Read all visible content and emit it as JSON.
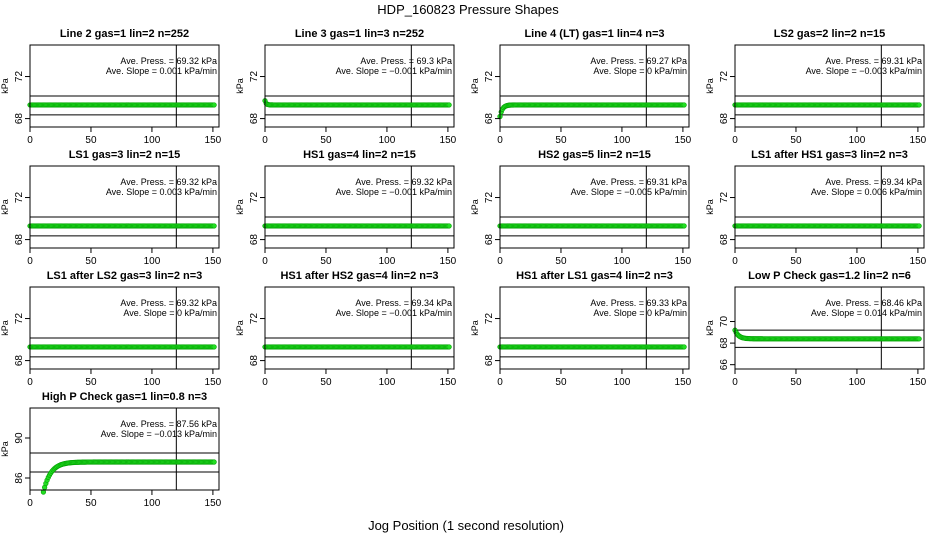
{
  "figure": {
    "title": "HDP_160823  Pressure Shapes",
    "xlabel": "Jog Position (1 second resolution)"
  },
  "colors": {
    "points": "#22dd22",
    "point_edge": "#00a000",
    "lines": "#000000"
  },
  "chart_data": [
    {
      "type": "scatter",
      "title": "Line 2 gas=1 lin=2 n=252",
      "ylabel": "kPa",
      "xlim": [
        0,
        155
      ],
      "ylim": [
        67.2,
        75.0
      ],
      "yticks": [
        68,
        72
      ],
      "xticks": [
        0,
        50,
        100,
        150
      ],
      "hlines": [
        70.15,
        68.35
      ],
      "vline": 120,
      "annotation": {
        "press": "Ave. Press. = 69.32  kPa",
        "slope": "Ave. Slope = 0.001  kPa/min"
      },
      "shape": {
        "type": "flat",
        "level": 69.3
      }
    },
    {
      "type": "scatter",
      "title": "Line 3 gas=1 lin=3 n=252",
      "ylabel": "kPa",
      "xlim": [
        0,
        155
      ],
      "ylim": [
        67.2,
        75.0
      ],
      "yticks": [
        68,
        72
      ],
      "xticks": [
        0,
        50,
        100,
        150
      ],
      "hlines": [
        70.15,
        68.35
      ],
      "vline": 120,
      "annotation": {
        "press": "Ave. Press. = 69.3  kPa",
        "slope": "Ave. Slope = −0.001  kPa/min"
      },
      "shape": {
        "type": "drop",
        "level": 69.3,
        "start": 69.7,
        "tau": 1
      }
    },
    {
      "type": "scatter",
      "title": "Line 4 (LT) gas=1 lin=4 n=3",
      "ylabel": "kPa",
      "xlim": [
        0,
        155
      ],
      "ylim": [
        67.2,
        75.0
      ],
      "yticks": [
        68,
        72
      ],
      "xticks": [
        0,
        50,
        100,
        150
      ],
      "hlines": [
        70.15,
        68.35
      ],
      "vline": 120,
      "annotation": {
        "press": "Ave. Press. = 69.27  kPa",
        "slope": "Ave. Slope = 0  kPa/min"
      },
      "shape": {
        "type": "rise",
        "level": 69.3,
        "start": 68.2,
        "tau": 2
      }
    },
    {
      "type": "scatter",
      "title": "LS2 gas=2 lin=2 n=15",
      "ylabel": "kPa",
      "xlim": [
        0,
        155
      ],
      "ylim": [
        67.2,
        75.0
      ],
      "yticks": [
        68,
        72
      ],
      "xticks": [
        0,
        50,
        100,
        150
      ],
      "hlines": [
        70.15,
        68.35
      ],
      "vline": 120,
      "annotation": {
        "press": "Ave. Press. = 69.31  kPa",
        "slope": "Ave. Slope = −0.003  kPa/min"
      },
      "shape": {
        "type": "flat",
        "level": 69.3
      }
    },
    {
      "type": "scatter",
      "title": "LS1 gas=3 lin=2 n=15",
      "ylabel": "kPa",
      "xlim": [
        0,
        155
      ],
      "ylim": [
        67.2,
        75.0
      ],
      "yticks": [
        68,
        72
      ],
      "xticks": [
        0,
        50,
        100,
        150
      ],
      "hlines": [
        70.15,
        68.35
      ],
      "vline": 120,
      "annotation": {
        "press": "Ave. Press. = 69.32  kPa",
        "slope": "Ave. Slope = 0.003  kPa/min"
      },
      "shape": {
        "type": "flat",
        "level": 69.3
      }
    },
    {
      "type": "scatter",
      "title": "HS1 gas=4 lin=2 n=15",
      "ylabel": "kPa",
      "xlim": [
        0,
        155
      ],
      "ylim": [
        67.2,
        75.0
      ],
      "yticks": [
        68,
        72
      ],
      "xticks": [
        0,
        50,
        100,
        150
      ],
      "hlines": [
        70.15,
        68.35
      ],
      "vline": 120,
      "annotation": {
        "press": "Ave. Press. = 69.32  kPa",
        "slope": "Ave. Slope = −0.001  kPa/min"
      },
      "shape": {
        "type": "flat",
        "level": 69.3
      }
    },
    {
      "type": "scatter",
      "title": "HS2 gas=5 lin=2 n=15",
      "ylabel": "kPa",
      "xlim": [
        0,
        155
      ],
      "ylim": [
        67.2,
        75.0
      ],
      "yticks": [
        68,
        72
      ],
      "xticks": [
        0,
        50,
        100,
        150
      ],
      "hlines": [
        70.15,
        68.35
      ],
      "vline": 120,
      "annotation": {
        "press": "Ave. Press. = 69.31  kPa",
        "slope": "Ave. Slope = −0.005  kPa/min"
      },
      "shape": {
        "type": "flat",
        "level": 69.3
      }
    },
    {
      "type": "scatter",
      "title": "LS1 after HS1 gas=3 lin=2 n=3",
      "ylabel": "kPa",
      "xlim": [
        0,
        155
      ],
      "ylim": [
        67.2,
        75.0
      ],
      "yticks": [
        68,
        72
      ],
      "xticks": [
        0,
        50,
        100,
        150
      ],
      "hlines": [
        70.15,
        68.35
      ],
      "vline": 120,
      "annotation": {
        "press": "Ave. Press. = 69.34  kPa",
        "slope": "Ave. Slope = 0.006  kPa/min"
      },
      "shape": {
        "type": "flat",
        "level": 69.3
      }
    },
    {
      "type": "scatter",
      "title": "LS1 after LS2 gas=3 lin=2 n=3",
      "ylabel": "kPa",
      "xlim": [
        0,
        155
      ],
      "ylim": [
        67.2,
        75.0
      ],
      "yticks": [
        68,
        72
      ],
      "xticks": [
        0,
        50,
        100,
        150
      ],
      "hlines": [
        70.15,
        68.35
      ],
      "vline": 120,
      "annotation": {
        "press": "Ave. Press. = 69.32  kPa",
        "slope": "Ave. Slope = 0  kPa/min"
      },
      "shape": {
        "type": "flat",
        "level": 69.3
      }
    },
    {
      "type": "scatter",
      "title": "HS1 after HS2 gas=4 lin=2 n=3",
      "ylabel": "kPa",
      "xlim": [
        0,
        155
      ],
      "ylim": [
        67.2,
        75.0
      ],
      "yticks": [
        68,
        72
      ],
      "xticks": [
        0,
        50,
        100,
        150
      ],
      "hlines": [
        70.15,
        68.35
      ],
      "vline": 120,
      "annotation": {
        "press": "Ave. Press. = 69.34  kPa",
        "slope": "Ave. Slope = −0.001  kPa/min"
      },
      "shape": {
        "type": "flat",
        "level": 69.3
      }
    },
    {
      "type": "scatter",
      "title": "HS1 after LS1 gas=4 lin=2 n=3",
      "ylabel": "kPa",
      "xlim": [
        0,
        155
      ],
      "ylim": [
        67.2,
        75.0
      ],
      "yticks": [
        68,
        72
      ],
      "xticks": [
        0,
        50,
        100,
        150
      ],
      "hlines": [
        70.15,
        68.35
      ],
      "vline": 120,
      "annotation": {
        "press": "Ave. Press. = 69.33  kPa",
        "slope": "Ave. Slope = 0  kPa/min"
      },
      "shape": {
        "type": "flat",
        "level": 69.3
      }
    },
    {
      "type": "scatter",
      "title": "Low P Check gas=1.2 lin=2 n=6",
      "ylabel": "kPa",
      "xlim": [
        0,
        155
      ],
      "ylim": [
        65.6,
        73.2
      ],
      "yticks": [
        66,
        68,
        70
      ],
      "xticks": [
        0,
        50,
        100,
        150
      ],
      "hlines": [
        69.2,
        67.6
      ],
      "vline": 120,
      "annotation": {
        "press": "Ave. Press. = 68.46  kPa",
        "slope": "Ave. Slope = 0.014  kPa/min"
      },
      "shape": {
        "type": "drop",
        "level": 68.4,
        "start": 69.2,
        "tau": 3
      }
    },
    {
      "type": "scatter",
      "title": "High P Check gas=1 lin=0.8 n=3",
      "ylabel": "kPa",
      "xlim": [
        0,
        155
      ],
      "ylim": [
        84.8,
        93.0
      ],
      "yticks": [
        86,
        90
      ],
      "xticks": [
        0,
        50,
        100,
        150
      ],
      "hlines": [
        88.5,
        86.6
      ],
      "vline": 120,
      "annotation": {
        "press": "Ave. Press. = 87.56  kPa",
        "slope": "Ave. Slope = −0.013  kPa/min"
      },
      "shape": {
        "type": "rise",
        "level": 87.6,
        "start": 84.6,
        "tau": 6,
        "x0": 11
      }
    }
  ]
}
